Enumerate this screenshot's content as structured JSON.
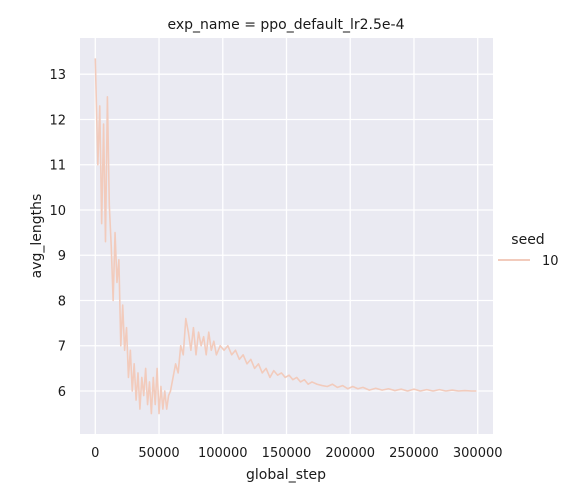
{
  "chart_data": {
    "type": "line",
    "title": "exp_name = ppo_default_lr2.5e-4",
    "xlabel": "global_step",
    "ylabel": "avg_lengths",
    "xlim": [
      -12000,
      312000
    ],
    "ylim": [
      5.05,
      13.8
    ],
    "x_ticks": [
      0,
      50000,
      100000,
      150000,
      200000,
      250000,
      300000
    ],
    "y_ticks": [
      6,
      7,
      8,
      9,
      10,
      11,
      12,
      13
    ],
    "grid": true,
    "legend": {
      "title": "seed",
      "placement": "right"
    },
    "series": [
      {
        "name": "10",
        "color": "#f2cbbc",
        "x": [
          0,
          2000,
          3500,
          5000,
          6500,
          8000,
          9500,
          11000,
          12500,
          14000,
          15500,
          17000,
          18500,
          20000,
          21500,
          23000,
          24500,
          26000,
          27500,
          29000,
          30500,
          32000,
          33500,
          35000,
          36500,
          38000,
          39500,
          41000,
          42500,
          44000,
          45500,
          47000,
          48500,
          50000,
          51500,
          53000,
          54500,
          56000,
          57500,
          59000,
          61000,
          63000,
          65000,
          67000,
          69000,
          71000,
          73000,
          75000,
          77000,
          79000,
          81000,
          83000,
          85000,
          87000,
          89000,
          91000,
          93000,
          95000,
          98000,
          101000,
          104000,
          107000,
          110000,
          113000,
          116000,
          119000,
          122000,
          125000,
          128000,
          131000,
          134000,
          137000,
          140000,
          143000,
          146000,
          149000,
          152000,
          155000,
          158000,
          161000,
          164000,
          167000,
          170000,
          174000,
          178000,
          182000,
          186000,
          190000,
          194000,
          198000,
          202000,
          206000,
          210000,
          215000,
          220000,
          225000,
          230000,
          235000,
          240000,
          245000,
          250000,
          255000,
          260000,
          265000,
          270000,
          275000,
          280000,
          285000,
          290000,
          295000,
          299000
        ],
        "y": [
          13.35,
          11.0,
          12.3,
          9.7,
          11.9,
          9.3,
          12.5,
          10.1,
          9.2,
          8.0,
          9.5,
          8.4,
          8.9,
          7.0,
          7.9,
          6.9,
          7.4,
          6.3,
          6.9,
          6.0,
          6.6,
          5.8,
          6.4,
          5.6,
          6.3,
          5.9,
          6.5,
          5.7,
          6.2,
          5.5,
          6.3,
          5.7,
          6.5,
          5.5,
          6.1,
          5.6,
          6.0,
          5.6,
          5.9,
          6.0,
          6.3,
          6.6,
          6.4,
          7.0,
          6.8,
          7.6,
          7.3,
          6.9,
          7.4,
          6.8,
          7.3,
          7.0,
          7.2,
          6.8,
          7.3,
          6.9,
          7.1,
          6.8,
          7.0,
          6.9,
          7.0,
          6.8,
          6.9,
          6.7,
          6.8,
          6.6,
          6.7,
          6.5,
          6.6,
          6.4,
          6.5,
          6.3,
          6.45,
          6.35,
          6.4,
          6.3,
          6.35,
          6.25,
          6.3,
          6.2,
          6.25,
          6.15,
          6.2,
          6.15,
          6.12,
          6.1,
          6.15,
          6.08,
          6.12,
          6.05,
          6.1,
          6.05,
          6.08,
          6.02,
          6.06,
          6.02,
          6.05,
          6.01,
          6.04,
          6.0,
          6.04,
          6.0,
          6.03,
          6.0,
          6.03,
          6.0,
          6.02,
          6.0,
          6.01,
          6.0,
          6.0
        ]
      }
    ]
  }
}
